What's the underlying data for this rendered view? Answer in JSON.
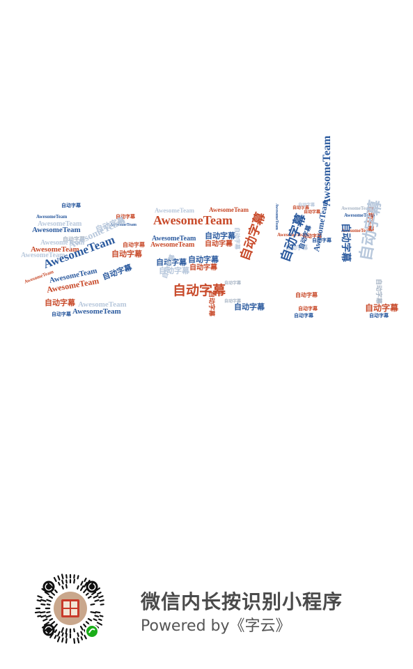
{
  "cloud": {
    "word_a": "AwesomeTeam",
    "word_b": "自动字幕",
    "colors": {
      "blue": "#2b5a9e",
      "red": "#c84a2a",
      "light": "#b8c8dc",
      "gray": "#a9b6c6"
    }
  },
  "footer": {
    "cta": "微信内长按识别小程序",
    "powered": "Powered by《字云》"
  }
}
